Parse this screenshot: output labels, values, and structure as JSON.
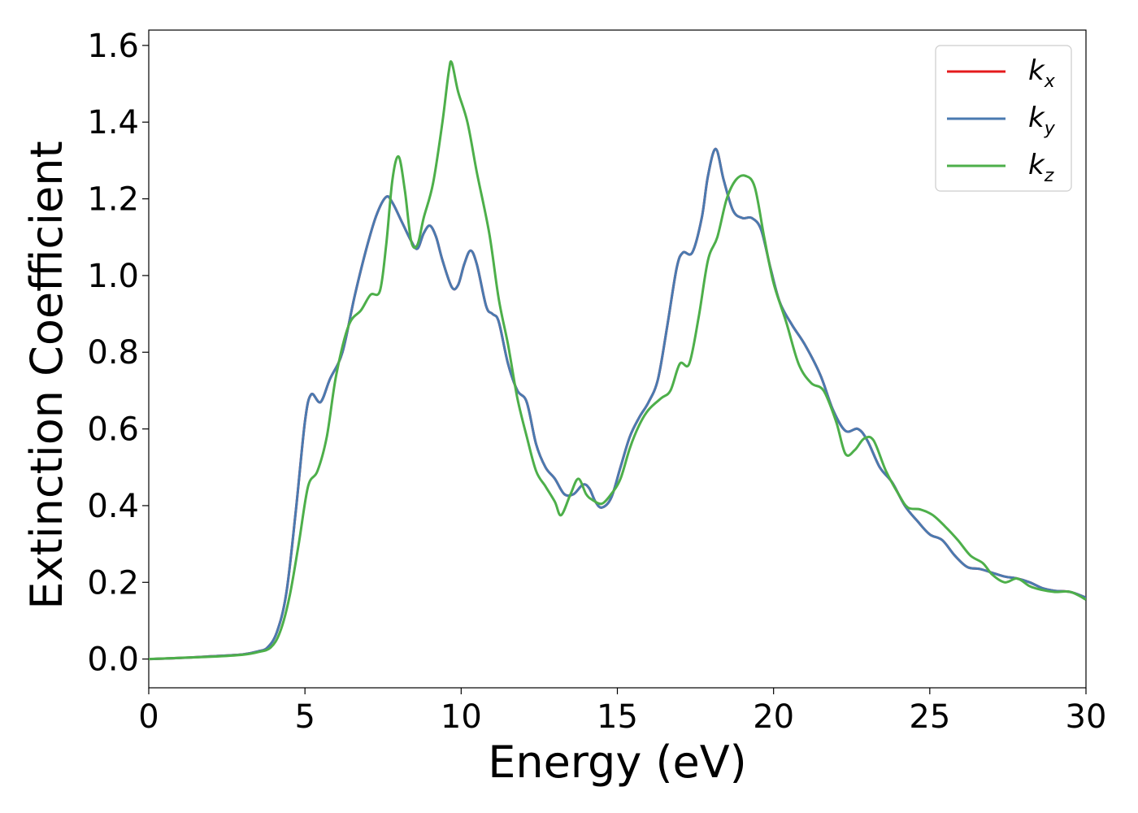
{
  "chart_data": {
    "type": "line",
    "xlabel": "Energy (eV)",
    "ylabel": "Extinction Coefficient",
    "xlim": [
      0,
      30
    ],
    "ylim": [
      -0.075,
      1.64
    ],
    "xticks": [
      0,
      5,
      10,
      15,
      20,
      25,
      30
    ],
    "xtick_labels": [
      "0",
      "5",
      "10",
      "15",
      "20",
      "25",
      "30"
    ],
    "yticks": [
      0.0,
      0.2,
      0.4,
      0.6,
      0.8,
      1.0,
      1.2,
      1.4,
      1.6
    ],
    "ytick_labels": [
      "0.0",
      "0.2",
      "0.4",
      "0.6",
      "0.8",
      "1.0",
      "1.2",
      "1.4",
      "1.6"
    ],
    "grid": false,
    "legend_position": "top-right",
    "series": [
      {
        "name": "k_x",
        "legend_base": "k",
        "legend_sub": "x",
        "color": "#e41a1c",
        "points": [
          [
            0,
            0
          ],
          [
            1,
            0.003
          ],
          [
            2,
            0.007
          ],
          [
            3,
            0.012
          ],
          [
            3.5,
            0.02
          ],
          [
            3.8,
            0.03
          ],
          [
            4.1,
            0.07
          ],
          [
            4.4,
            0.17
          ],
          [
            4.7,
            0.38
          ],
          [
            5.0,
            0.62
          ],
          [
            5.2,
            0.69
          ],
          [
            5.5,
            0.67
          ],
          [
            5.8,
            0.73
          ],
          [
            6.2,
            0.8
          ],
          [
            6.6,
            0.95
          ],
          [
            7.0,
            1.08
          ],
          [
            7.3,
            1.16
          ],
          [
            7.6,
            1.205
          ],
          [
            7.8,
            1.19
          ],
          [
            8.1,
            1.14
          ],
          [
            8.4,
            1.09
          ],
          [
            8.6,
            1.07
          ],
          [
            8.8,
            1.11
          ],
          [
            9.0,
            1.13
          ],
          [
            9.2,
            1.1
          ],
          [
            9.4,
            1.04
          ],
          [
            9.7,
            0.97
          ],
          [
            9.9,
            0.975
          ],
          [
            10.1,
            1.03
          ],
          [
            10.3,
            1.065
          ],
          [
            10.5,
            1.03
          ],
          [
            10.8,
            0.92
          ],
          [
            11.0,
            0.9
          ],
          [
            11.2,
            0.88
          ],
          [
            11.5,
            0.77
          ],
          [
            11.8,
            0.7
          ],
          [
            12.1,
            0.67
          ],
          [
            12.4,
            0.56
          ],
          [
            12.7,
            0.5
          ],
          [
            13.0,
            0.47
          ],
          [
            13.3,
            0.43
          ],
          [
            13.6,
            0.43
          ],
          [
            13.9,
            0.455
          ],
          [
            14.1,
            0.445
          ],
          [
            14.3,
            0.41
          ],
          [
            14.5,
            0.395
          ],
          [
            14.8,
            0.42
          ],
          [
            15.1,
            0.5
          ],
          [
            15.4,
            0.58
          ],
          [
            15.7,
            0.63
          ],
          [
            16.0,
            0.67
          ],
          [
            16.3,
            0.73
          ],
          [
            16.6,
            0.87
          ],
          [
            16.9,
            1.02
          ],
          [
            17.1,
            1.06
          ],
          [
            17.4,
            1.06
          ],
          [
            17.7,
            1.15
          ],
          [
            17.9,
            1.26
          ],
          [
            18.15,
            1.33
          ],
          [
            18.4,
            1.25
          ],
          [
            18.7,
            1.17
          ],
          [
            19.0,
            1.15
          ],
          [
            19.3,
            1.15
          ],
          [
            19.6,
            1.12
          ],
          [
            19.9,
            1.02
          ],
          [
            20.2,
            0.93
          ],
          [
            20.6,
            0.87
          ],
          [
            21.0,
            0.82
          ],
          [
            21.5,
            0.74
          ],
          [
            21.9,
            0.65
          ],
          [
            22.3,
            0.595
          ],
          [
            22.7,
            0.6
          ],
          [
            23.0,
            0.57
          ],
          [
            23.4,
            0.5
          ],
          [
            23.8,
            0.46
          ],
          [
            24.2,
            0.4
          ],
          [
            24.6,
            0.36
          ],
          [
            25.0,
            0.325
          ],
          [
            25.4,
            0.31
          ],
          [
            25.8,
            0.27
          ],
          [
            26.2,
            0.24
          ],
          [
            26.6,
            0.235
          ],
          [
            27.0,
            0.225
          ],
          [
            27.4,
            0.215
          ],
          [
            27.8,
            0.21
          ],
          [
            28.2,
            0.2
          ],
          [
            28.6,
            0.185
          ],
          [
            29.0,
            0.178
          ],
          [
            29.5,
            0.175
          ],
          [
            30.0,
            0.16
          ]
        ]
      },
      {
        "name": "k_y",
        "legend_base": "k",
        "legend_sub": "y",
        "color": "#4a7ab0",
        "points": [
          [
            0,
            0
          ],
          [
            1,
            0.003
          ],
          [
            2,
            0.007
          ],
          [
            3,
            0.012
          ],
          [
            3.5,
            0.02
          ],
          [
            3.8,
            0.03
          ],
          [
            4.1,
            0.07
          ],
          [
            4.4,
            0.17
          ],
          [
            4.7,
            0.38
          ],
          [
            5.0,
            0.62
          ],
          [
            5.2,
            0.69
          ],
          [
            5.5,
            0.67
          ],
          [
            5.8,
            0.73
          ],
          [
            6.2,
            0.8
          ],
          [
            6.6,
            0.95
          ],
          [
            7.0,
            1.08
          ],
          [
            7.3,
            1.16
          ],
          [
            7.6,
            1.205
          ],
          [
            7.8,
            1.19
          ],
          [
            8.1,
            1.14
          ],
          [
            8.4,
            1.09
          ],
          [
            8.6,
            1.07
          ],
          [
            8.8,
            1.11
          ],
          [
            9.0,
            1.13
          ],
          [
            9.2,
            1.1
          ],
          [
            9.4,
            1.04
          ],
          [
            9.7,
            0.97
          ],
          [
            9.9,
            0.975
          ],
          [
            10.1,
            1.03
          ],
          [
            10.3,
            1.065
          ],
          [
            10.5,
            1.03
          ],
          [
            10.8,
            0.92
          ],
          [
            11.0,
            0.9
          ],
          [
            11.2,
            0.88
          ],
          [
            11.5,
            0.77
          ],
          [
            11.8,
            0.7
          ],
          [
            12.1,
            0.67
          ],
          [
            12.4,
            0.56
          ],
          [
            12.7,
            0.5
          ],
          [
            13.0,
            0.47
          ],
          [
            13.3,
            0.43
          ],
          [
            13.6,
            0.43
          ],
          [
            13.9,
            0.455
          ],
          [
            14.1,
            0.445
          ],
          [
            14.3,
            0.41
          ],
          [
            14.5,
            0.395
          ],
          [
            14.8,
            0.42
          ],
          [
            15.1,
            0.5
          ],
          [
            15.4,
            0.58
          ],
          [
            15.7,
            0.63
          ],
          [
            16.0,
            0.67
          ],
          [
            16.3,
            0.73
          ],
          [
            16.6,
            0.87
          ],
          [
            16.9,
            1.02
          ],
          [
            17.1,
            1.06
          ],
          [
            17.4,
            1.06
          ],
          [
            17.7,
            1.15
          ],
          [
            17.9,
            1.26
          ],
          [
            18.15,
            1.33
          ],
          [
            18.4,
            1.25
          ],
          [
            18.7,
            1.17
          ],
          [
            19.0,
            1.15
          ],
          [
            19.3,
            1.15
          ],
          [
            19.6,
            1.12
          ],
          [
            19.9,
            1.02
          ],
          [
            20.2,
            0.93
          ],
          [
            20.6,
            0.87
          ],
          [
            21.0,
            0.82
          ],
          [
            21.5,
            0.74
          ],
          [
            21.9,
            0.65
          ],
          [
            22.3,
            0.595
          ],
          [
            22.7,
            0.6
          ],
          [
            23.0,
            0.57
          ],
          [
            23.4,
            0.5
          ],
          [
            23.8,
            0.46
          ],
          [
            24.2,
            0.4
          ],
          [
            24.6,
            0.36
          ],
          [
            25.0,
            0.325
          ],
          [
            25.4,
            0.31
          ],
          [
            25.8,
            0.27
          ],
          [
            26.2,
            0.24
          ],
          [
            26.6,
            0.235
          ],
          [
            27.0,
            0.225
          ],
          [
            27.4,
            0.215
          ],
          [
            27.8,
            0.21
          ],
          [
            28.2,
            0.2
          ],
          [
            28.6,
            0.185
          ],
          [
            29.0,
            0.178
          ],
          [
            29.5,
            0.175
          ],
          [
            30.0,
            0.16
          ]
        ]
      },
      {
        "name": "k_z",
        "legend_base": "k",
        "legend_sub": "z",
        "color": "#4daf4a",
        "points": [
          [
            0,
            0
          ],
          [
            1,
            0.003
          ],
          [
            2,
            0.006
          ],
          [
            3,
            0.011
          ],
          [
            3.5,
            0.018
          ],
          [
            3.9,
            0.03
          ],
          [
            4.2,
            0.07
          ],
          [
            4.5,
            0.16
          ],
          [
            4.8,
            0.3
          ],
          [
            5.1,
            0.45
          ],
          [
            5.4,
            0.49
          ],
          [
            5.7,
            0.58
          ],
          [
            6.0,
            0.74
          ],
          [
            6.4,
            0.87
          ],
          [
            6.8,
            0.91
          ],
          [
            7.1,
            0.95
          ],
          [
            7.4,
            0.96
          ],
          [
            7.6,
            1.08
          ],
          [
            7.8,
            1.25
          ],
          [
            8.0,
            1.31
          ],
          [
            8.2,
            1.22
          ],
          [
            8.4,
            1.09
          ],
          [
            8.6,
            1.08
          ],
          [
            8.8,
            1.15
          ],
          [
            9.1,
            1.24
          ],
          [
            9.4,
            1.4
          ],
          [
            9.6,
            1.53
          ],
          [
            9.7,
            1.555
          ],
          [
            9.9,
            1.48
          ],
          [
            10.2,
            1.4
          ],
          [
            10.5,
            1.27
          ],
          [
            10.9,
            1.11
          ],
          [
            11.2,
            0.94
          ],
          [
            11.5,
            0.82
          ],
          [
            11.8,
            0.68
          ],
          [
            12.1,
            0.58
          ],
          [
            12.4,
            0.49
          ],
          [
            12.7,
            0.45
          ],
          [
            13.0,
            0.41
          ],
          [
            13.2,
            0.375
          ],
          [
            13.5,
            0.43
          ],
          [
            13.75,
            0.47
          ],
          [
            14.0,
            0.43
          ],
          [
            14.2,
            0.415
          ],
          [
            14.5,
            0.405
          ],
          [
            14.8,
            0.43
          ],
          [
            15.1,
            0.47
          ],
          [
            15.4,
            0.55
          ],
          [
            15.7,
            0.61
          ],
          [
            16.0,
            0.65
          ],
          [
            16.4,
            0.68
          ],
          [
            16.7,
            0.7
          ],
          [
            17.0,
            0.77
          ],
          [
            17.3,
            0.77
          ],
          [
            17.6,
            0.89
          ],
          [
            17.9,
            1.04
          ],
          [
            18.2,
            1.1
          ],
          [
            18.5,
            1.2
          ],
          [
            18.8,
            1.25
          ],
          [
            19.1,
            1.26
          ],
          [
            19.4,
            1.23
          ],
          [
            19.7,
            1.1
          ],
          [
            20.0,
            0.98
          ],
          [
            20.4,
            0.88
          ],
          [
            20.8,
            0.77
          ],
          [
            21.2,
            0.72
          ],
          [
            21.6,
            0.7
          ],
          [
            22.0,
            0.62
          ],
          [
            22.3,
            0.535
          ],
          [
            22.6,
            0.545
          ],
          [
            22.9,
            0.575
          ],
          [
            23.2,
            0.57
          ],
          [
            23.6,
            0.49
          ],
          [
            24.0,
            0.43
          ],
          [
            24.3,
            0.395
          ],
          [
            24.7,
            0.39
          ],
          [
            25.1,
            0.375
          ],
          [
            25.5,
            0.345
          ],
          [
            25.9,
            0.31
          ],
          [
            26.3,
            0.27
          ],
          [
            26.7,
            0.25
          ],
          [
            27.0,
            0.22
          ],
          [
            27.4,
            0.2
          ],
          [
            27.8,
            0.21
          ],
          [
            28.2,
            0.19
          ],
          [
            28.6,
            0.18
          ],
          [
            29.0,
            0.175
          ],
          [
            29.5,
            0.175
          ],
          [
            30.0,
            0.155
          ]
        ]
      }
    ]
  }
}
